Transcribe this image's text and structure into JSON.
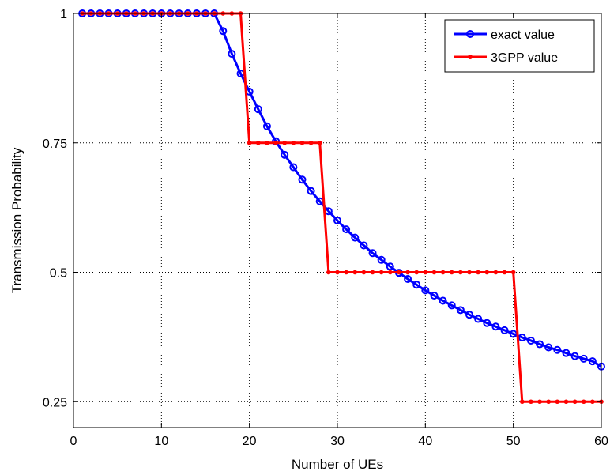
{
  "chart_data": {
    "type": "line",
    "xlabel": "Number of UEs",
    "ylabel": "Transmission Probability",
    "xlim": [
      0,
      60
    ],
    "ylim": [
      0.2,
      1
    ],
    "xticks": [
      0,
      10,
      20,
      30,
      40,
      50,
      60
    ],
    "yticks": [
      0.25,
      0.5,
      0.75,
      1
    ],
    "ytick_labels": [
      "0.25",
      "0.5",
      "0.75",
      "1"
    ],
    "grid": true,
    "legend_position": "top-right",
    "x": [
      1,
      2,
      3,
      4,
      5,
      6,
      7,
      8,
      9,
      10,
      11,
      12,
      13,
      14,
      15,
      16,
      17,
      18,
      19,
      20,
      21,
      22,
      23,
      24,
      25,
      26,
      27,
      28,
      29,
      30,
      31,
      32,
      33,
      34,
      35,
      36,
      37,
      38,
      39,
      40,
      41,
      42,
      43,
      44,
      45,
      46,
      47,
      48,
      49,
      50,
      51,
      52,
      53,
      54,
      55,
      56,
      57,
      58,
      59,
      60
    ],
    "series": [
      {
        "name": "exact value",
        "color": "#0000ff",
        "marker": "circle",
        "values": [
          1,
          1,
          1,
          1,
          1,
          1,
          1,
          1,
          1,
          1,
          1,
          1,
          1,
          1,
          1,
          1,
          0.966,
          0.922,
          0.884,
          0.849,
          0.815,
          0.782,
          0.753,
          0.727,
          0.703,
          0.679,
          0.657,
          0.637,
          0.618,
          0.6,
          0.583,
          0.567,
          0.552,
          0.537,
          0.524,
          0.511,
          0.499,
          0.487,
          0.476,
          0.465,
          0.455,
          0.445,
          0.436,
          0.427,
          0.418,
          0.41,
          0.402,
          0.395,
          0.388,
          0.381,
          0.374,
          0.368,
          0.361,
          0.355,
          0.35,
          0.344,
          0.338,
          0.333,
          0.328,
          0.318
        ]
      },
      {
        "name": "3GPP value",
        "color": "#ff0000",
        "marker": "dot",
        "values": [
          1,
          1,
          1,
          1,
          1,
          1,
          1,
          1,
          1,
          1,
          1,
          1,
          1,
          1,
          1,
          1,
          1,
          1,
          1,
          0.75,
          0.75,
          0.75,
          0.75,
          0.75,
          0.75,
          0.75,
          0.75,
          0.75,
          0.5,
          0.5,
          0.5,
          0.5,
          0.5,
          0.5,
          0.5,
          0.5,
          0.5,
          0.5,
          0.5,
          0.5,
          0.5,
          0.5,
          0.5,
          0.5,
          0.5,
          0.5,
          0.5,
          0.5,
          0.5,
          0.5,
          0.25,
          0.25,
          0.25,
          0.25,
          0.25,
          0.25,
          0.25,
          0.25,
          0.25,
          0.25
        ]
      }
    ]
  }
}
